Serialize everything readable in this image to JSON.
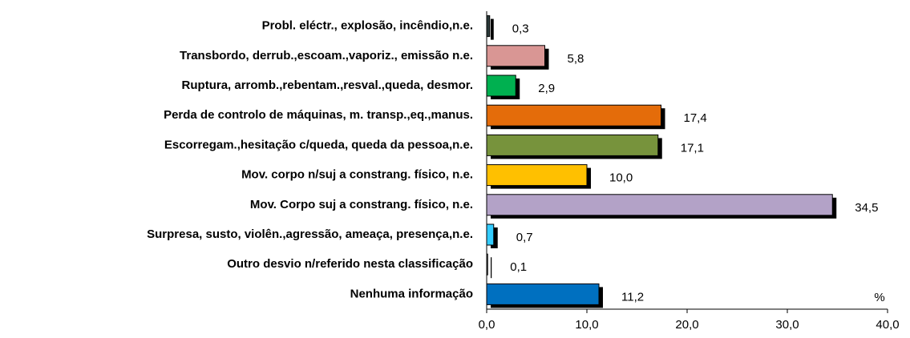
{
  "chart_data": {
    "type": "bar",
    "orientation": "horizontal",
    "categories": [
      "Probl. eléctr., explosão, incêndio,n.e.",
      "Transbordo, derrub.,escoam.,vaporiz., emissão n.e.",
      "Ruptura, arromb.,rebentam.,resval.,queda, desmor.",
      "Perda de controlo de máquinas, m. transp.,eq.,manus.",
      "Escorregam.,hesitação c/queda, queda da pessoa,n.e.",
      "Mov. corpo n/suj a constrang. físico, n.e.",
      "Mov. Corpo suj a constrang. físico, n.e.",
      "Surpresa, susto, violên.,agressão, ameaça, presença,n.e.",
      "Outro desvio n/referido nesta classificação",
      "Nenhuma informação"
    ],
    "values": [
      0.3,
      5.8,
      2.9,
      17.4,
      17.1,
      10.0,
      34.5,
      0.7,
      0.1,
      11.2
    ],
    "value_labels": [
      "0,3",
      "5,8",
      "2,9",
      "17,4",
      "17,1",
      "10,0",
      "34,5",
      "0,7",
      "0,1",
      "11,2"
    ],
    "colors": [
      "#2a3a3a",
      "#d99694",
      "#00b050",
      "#e46c0a",
      "#77933c",
      "#ffc000",
      "#b3a2c7",
      "#33ccff",
      "#7f7f7f",
      "#0070c0"
    ],
    "xlim": [
      0,
      40
    ],
    "xticks": [
      {
        "value": 0,
        "label": "0,0"
      },
      {
        "value": 10,
        "label": "10,0"
      },
      {
        "value": 20,
        "label": "20,0"
      },
      {
        "value": 30,
        "label": "30,0"
      },
      {
        "value": 40,
        "label": "40,0"
      }
    ],
    "unit_label": "%",
    "grid": false
  }
}
